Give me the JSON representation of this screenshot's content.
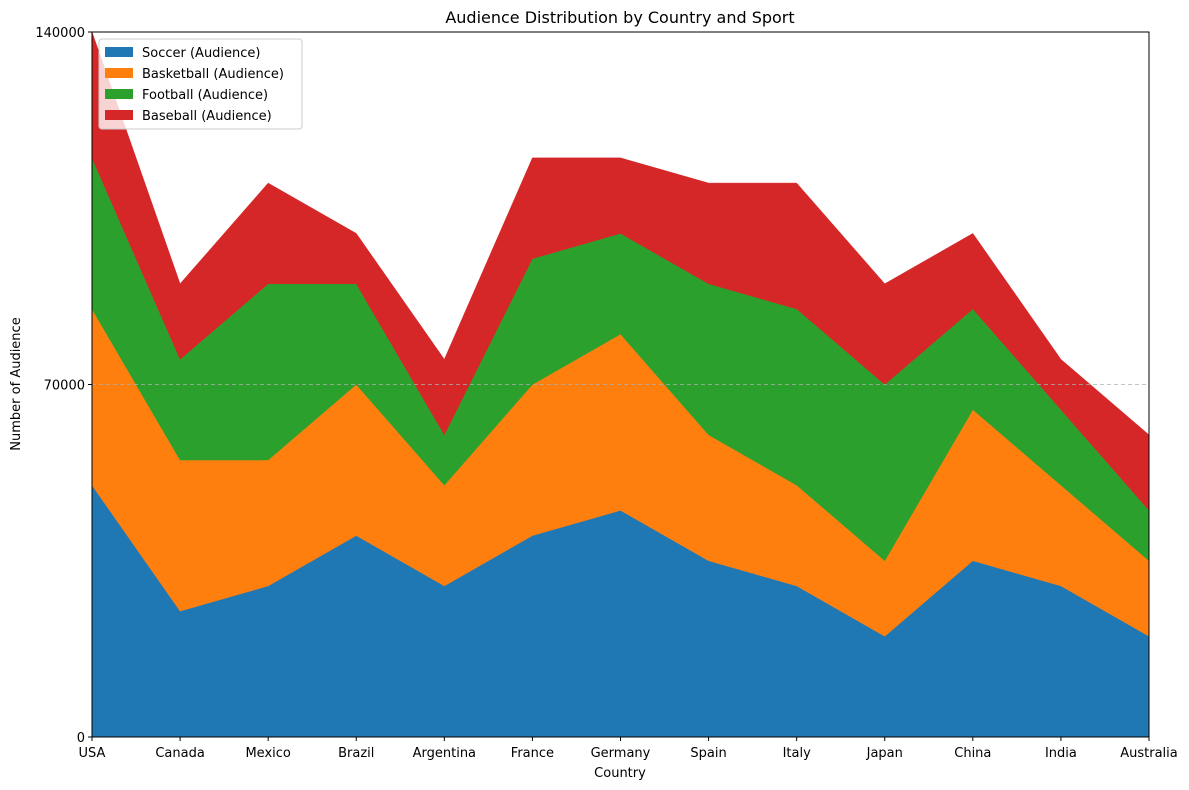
{
  "chart_data": {
    "type": "area",
    "stacked": true,
    "title": "Audience Distribution by Country and Sport",
    "xlabel": "Country",
    "ylabel": "Number of Audience",
    "categories": [
      "USA",
      "Canada",
      "Mexico",
      "Brazil",
      "Argentina",
      "France",
      "Germany",
      "Spain",
      "Italy",
      "Japan",
      "China",
      "India",
      "Australia"
    ],
    "ylim": [
      0,
      140000
    ],
    "yticks": [
      0,
      70000,
      140000
    ],
    "grid": "horizontal dashed at 70000",
    "legend_position": "top-left",
    "series": [
      {
        "name": "Soccer (Audience)",
        "color": "#1f77b4",
        "values": [
          50000,
          25000,
          30000,
          40000,
          30000,
          40000,
          45000,
          35000,
          30000,
          20000,
          35000,
          30000,
          20000
        ]
      },
      {
        "name": "Basketball (Audience)",
        "color": "#ff7f0e",
        "values": [
          35000,
          30000,
          25000,
          30000,
          20000,
          30000,
          35000,
          25000,
          20000,
          15000,
          30000,
          20000,
          15000
        ]
      },
      {
        "name": "Football (Audience)",
        "color": "#2ca02c",
        "values": [
          30000,
          20000,
          35000,
          20000,
          10000,
          25000,
          20000,
          30000,
          35000,
          35000,
          20000,
          15000,
          10000
        ]
      },
      {
        "name": "Baseball (Audience)",
        "color": "#d62728",
        "values": [
          25000,
          15000,
          20000,
          10000,
          15000,
          20000,
          15000,
          20000,
          25000,
          20000,
          15000,
          10000,
          15000
        ]
      }
    ]
  }
}
